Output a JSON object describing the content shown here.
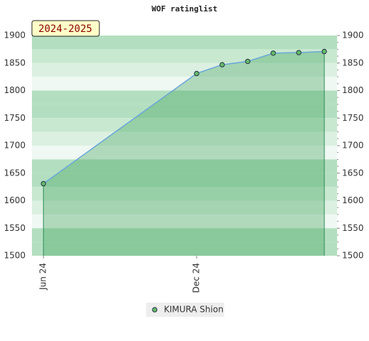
{
  "chart_data": {
    "type": "line",
    "title": "WOF ratinglist",
    "annotation": "2024-2025",
    "x": [
      0,
      6,
      7,
      8,
      9,
      10,
      11
    ],
    "xlim": [
      -0.45,
      11.5
    ],
    "xticks": [
      {
        "value": 0,
        "label": "Jun 24"
      },
      {
        "value": 6,
        "label": "Dec 24"
      }
    ],
    "series": [
      {
        "name": "KIMURA Shion",
        "color": "#66bb6a",
        "values": [
          1631,
          1831,
          1847,
          1853,
          1868,
          1869,
          1871
        ]
      }
    ],
    "ylim": [
      1500,
      1900
    ],
    "yticks": [
      1500,
      1550,
      1600,
      1650,
      1700,
      1750,
      1800,
      1850,
      1900
    ]
  }
}
